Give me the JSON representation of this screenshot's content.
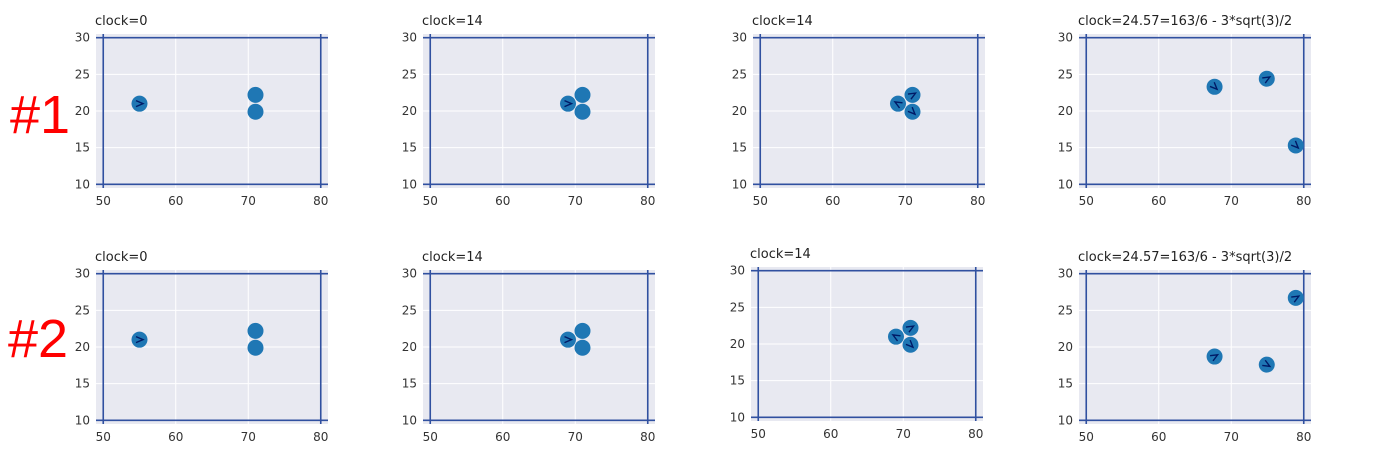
{
  "row_labels": [
    "#1",
    "#2"
  ],
  "colors": {
    "background": "#e8e9f1",
    "grid": "#ffffff",
    "boundary": "#3050a0",
    "ball": "#1f77b4",
    "arrow": "#001a66",
    "row_label": "#ff0000"
  },
  "chart_data": [
    {
      "type": "scatter",
      "row": "#1",
      "title": "clock=0",
      "xlim": [
        49,
        81
      ],
      "ylim": [
        9.5,
        30.5
      ],
      "xticks": [
        50,
        60,
        70,
        80
      ],
      "yticks": [
        10,
        15,
        20,
        25,
        30
      ],
      "grid": true,
      "boundary": {
        "x": [
          50,
          80
        ],
        "y": [
          10,
          30
        ]
      },
      "points": [
        {
          "x": 55,
          "y": 21,
          "heading": 0
        },
        {
          "x": 71,
          "y": 22.2,
          "heading": null
        },
        {
          "x": 71,
          "y": 19.9,
          "heading": null
        }
      ]
    },
    {
      "type": "scatter",
      "row": "#1",
      "title": "clock=14",
      "xlim": [
        49,
        81
      ],
      "ylim": [
        9.5,
        30.5
      ],
      "xticks": [
        50,
        60,
        70,
        80
      ],
      "yticks": [
        10,
        15,
        20,
        25,
        30
      ],
      "grid": true,
      "boundary": {
        "x": [
          50,
          80
        ],
        "y": [
          10,
          30
        ]
      },
      "points": [
        {
          "x": 69,
          "y": 21,
          "heading": 0
        },
        {
          "x": 71,
          "y": 22.2,
          "heading": null
        },
        {
          "x": 71,
          "y": 19.9,
          "heading": null
        }
      ]
    },
    {
      "type": "scatter",
      "row": "#1",
      "title": "clock=14",
      "xlim": [
        49,
        81
      ],
      "ylim": [
        9.5,
        30.5
      ],
      "xticks": [
        50,
        60,
        70,
        80
      ],
      "yticks": [
        10,
        15,
        20,
        25,
        30
      ],
      "grid": true,
      "boundary": {
        "x": [
          50,
          80
        ],
        "y": [
          10,
          30
        ]
      },
      "points": [
        {
          "x": 69,
          "y": 21,
          "heading": 150
        },
        {
          "x": 71,
          "y": 22.2,
          "heading": 30
        },
        {
          "x": 71,
          "y": 19.9,
          "heading": -45
        }
      ]
    },
    {
      "type": "scatter",
      "row": "#1",
      "title": "clock=24.57=163/6 - 3*sqrt(3)/2",
      "xlim": [
        49,
        81
      ],
      "ylim": [
        9.5,
        30.5
      ],
      "xticks": [
        50,
        60,
        70,
        80
      ],
      "yticks": [
        10,
        15,
        20,
        25,
        30
      ],
      "grid": true,
      "boundary": {
        "x": [
          50,
          80
        ],
        "y": [
          10,
          30
        ]
      },
      "points": [
        {
          "x": 67.7,
          "y": 23.3,
          "heading": -45
        },
        {
          "x": 74.9,
          "y": 24.4,
          "heading": 30
        },
        {
          "x": 78.9,
          "y": 15.3,
          "heading": -45
        }
      ]
    },
    {
      "type": "scatter",
      "row": "#2",
      "title": "clock=0",
      "xlim": [
        49,
        81
      ],
      "ylim": [
        9.5,
        30.5
      ],
      "xticks": [
        50,
        60,
        70,
        80
      ],
      "yticks": [
        10,
        15,
        20,
        25,
        30
      ],
      "grid": true,
      "boundary": {
        "x": [
          50,
          80
        ],
        "y": [
          10,
          30
        ]
      },
      "points": [
        {
          "x": 55,
          "y": 21,
          "heading": 0
        },
        {
          "x": 71,
          "y": 22.2,
          "heading": null
        },
        {
          "x": 71,
          "y": 19.9,
          "heading": null
        }
      ]
    },
    {
      "type": "scatter",
      "row": "#2",
      "title": "clock=14",
      "xlim": [
        49,
        81
      ],
      "ylim": [
        9.5,
        30.5
      ],
      "xticks": [
        50,
        60,
        70,
        80
      ],
      "yticks": [
        10,
        15,
        20,
        25,
        30
      ],
      "grid": true,
      "boundary": {
        "x": [
          50,
          80
        ],
        "y": [
          10,
          30
        ]
      },
      "points": [
        {
          "x": 69,
          "y": 21,
          "heading": 0
        },
        {
          "x": 71,
          "y": 22.2,
          "heading": null
        },
        {
          "x": 71,
          "y": 19.9,
          "heading": null
        }
      ]
    },
    {
      "type": "scatter",
      "row": "#2",
      "title": "clock=14",
      "xlim": [
        49,
        81
      ],
      "ylim": [
        9.5,
        30.5
      ],
      "xticks": [
        50,
        60,
        70,
        80
      ],
      "yticks": [
        10,
        15,
        20,
        25,
        30
      ],
      "grid": true,
      "boundary": {
        "x": [
          50,
          80
        ],
        "y": [
          10,
          30
        ]
      },
      "points": [
        {
          "x": 69,
          "y": 21,
          "heading": 150
        },
        {
          "x": 71,
          "y": 22.2,
          "heading": 30
        },
        {
          "x": 71,
          "y": 19.9,
          "heading": -45
        }
      ]
    },
    {
      "type": "scatter",
      "row": "#2",
      "title": "clock=24.57=163/6 - 3*sqrt(3)/2",
      "xlim": [
        49,
        81
      ],
      "ylim": [
        9.5,
        30.5
      ],
      "xticks": [
        50,
        60,
        70,
        80
      ],
      "yticks": [
        10,
        15,
        20,
        25,
        30
      ],
      "grid": true,
      "boundary": {
        "x": [
          50,
          80
        ],
        "y": [
          10,
          30
        ]
      },
      "points": [
        {
          "x": 67.7,
          "y": 18.7,
          "heading": 30
        },
        {
          "x": 74.9,
          "y": 17.6,
          "heading": -30
        },
        {
          "x": 78.9,
          "y": 26.7,
          "heading": 30
        }
      ]
    }
  ]
}
